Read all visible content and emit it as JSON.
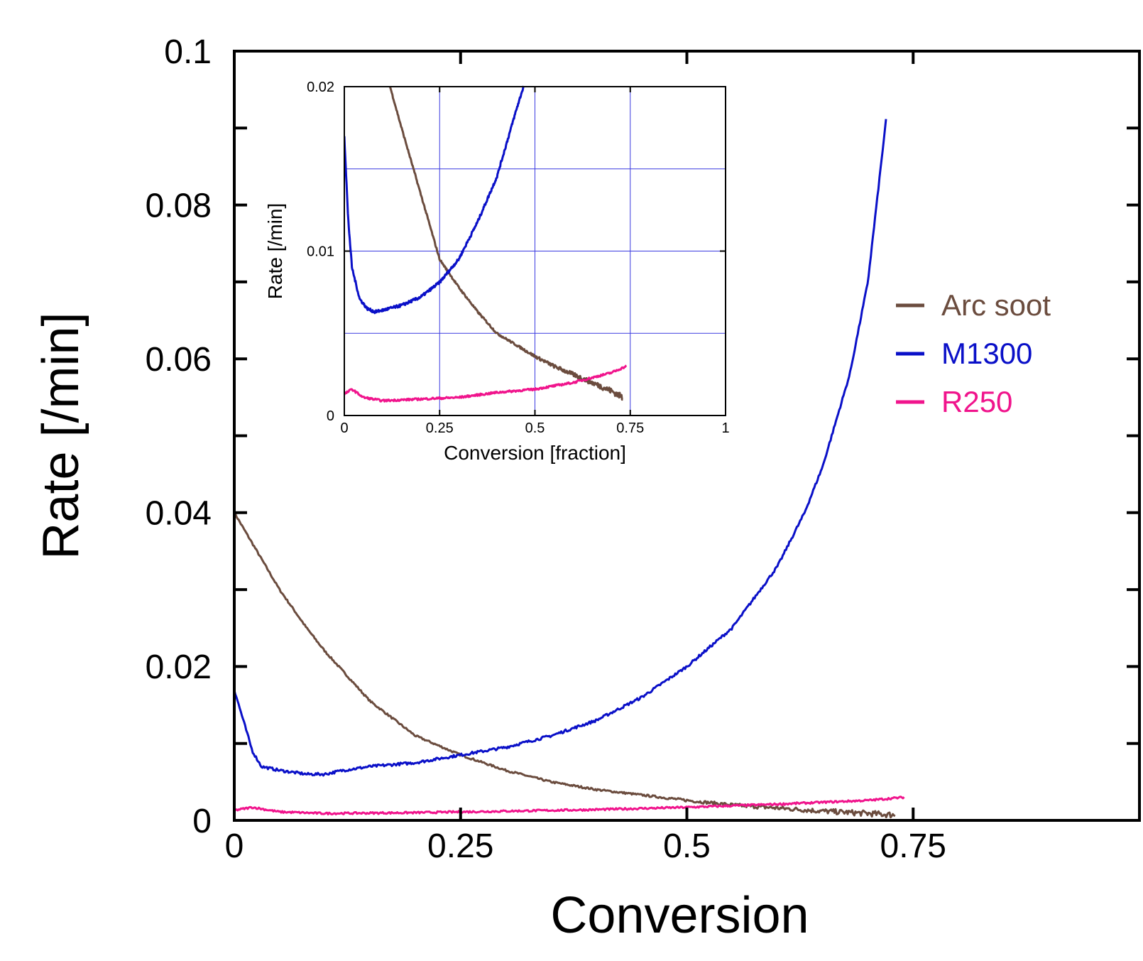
{
  "chart_data": [
    {
      "type": "line",
      "title": "",
      "xlabel": "Conversion",
      "ylabel": "Rate [/min]",
      "xlim": [
        0,
        1
      ],
      "ylim": [
        0,
        0.1
      ],
      "xticks": [
        0,
        0.25,
        0.5,
        0.75
      ],
      "xtick_labels": [
        "0",
        "0.25",
        "0.5",
        "0.75"
      ],
      "yticks": [
        0,
        0.02,
        0.04,
        0.06,
        0.08,
        0.1
      ],
      "ytick_labels": [
        "0",
        "0.02",
        "0.04",
        "0.06",
        "0.08",
        "0.1"
      ],
      "grid": false,
      "legend": "right",
      "series": [
        {
          "name": "Arc soot",
          "color": "#6b4c3e",
          "x": [
            0.0,
            0.02,
            0.05,
            0.08,
            0.1,
            0.15,
            0.2,
            0.25,
            0.3,
            0.35,
            0.4,
            0.45,
            0.5,
            0.55,
            0.6,
            0.65,
            0.7,
            0.73
          ],
          "y": [
            0.04,
            0.036,
            0.03,
            0.025,
            0.022,
            0.0155,
            0.011,
            0.0085,
            0.0065,
            0.005,
            0.004,
            0.0033,
            0.0026,
            0.002,
            0.0016,
            0.0012,
            0.0009,
            0.0007
          ]
        },
        {
          "name": "M1300",
          "color": "#0a10c8",
          "x": [
            0.0,
            0.01,
            0.02,
            0.03,
            0.05,
            0.08,
            0.1,
            0.12,
            0.15,
            0.2,
            0.25,
            0.3,
            0.35,
            0.4,
            0.45,
            0.5,
            0.55,
            0.6,
            0.63,
            0.65,
            0.68,
            0.7,
            0.72
          ],
          "y": [
            0.017,
            0.013,
            0.009,
            0.007,
            0.0065,
            0.006,
            0.006,
            0.0065,
            0.007,
            0.0075,
            0.0085,
            0.0095,
            0.011,
            0.013,
            0.016,
            0.02,
            0.025,
            0.033,
            0.04,
            0.046,
            0.058,
            0.07,
            0.091
          ]
        },
        {
          "name": "R250",
          "color": "#f0148c",
          "x": [
            0.0,
            0.02,
            0.05,
            0.1,
            0.2,
            0.3,
            0.4,
            0.5,
            0.6,
            0.7,
            0.74
          ],
          "y": [
            0.0013,
            0.0017,
            0.0011,
            0.0009,
            0.001,
            0.0012,
            0.0014,
            0.0017,
            0.0021,
            0.0026,
            0.003
          ]
        }
      ]
    },
    {
      "type": "line",
      "title": "",
      "xlabel": "Conversion [fraction]",
      "ylabel": "Rate [/min]",
      "xlim": [
        0,
        1
      ],
      "ylim": [
        0,
        0.02
      ],
      "xticks": [
        0,
        0.25,
        0.5,
        0.75,
        1
      ],
      "xtick_labels": [
        "0",
        "0.25",
        "0.5",
        "0.75",
        "1"
      ],
      "yticks": [
        0,
        0.01,
        0.02
      ],
      "ytick_labels": [
        "0",
        "0.01",
        "0.02"
      ],
      "grid": true,
      "grid_color": "#3a3ae0",
      "series": [
        {
          "name": "Arc soot",
          "color": "#6b4c3e",
          "x": [
            0.12,
            0.15,
            0.2,
            0.25,
            0.3,
            0.35,
            0.4,
            0.45,
            0.5,
            0.55,
            0.6,
            0.65,
            0.7,
            0.73
          ],
          "y": [
            0.02,
            0.0175,
            0.0135,
            0.0095,
            0.0078,
            0.0063,
            0.005,
            0.0043,
            0.0036,
            0.003,
            0.0025,
            0.002,
            0.0015,
            0.0011
          ]
        },
        {
          "name": "M1300",
          "color": "#0a10c8",
          "x": [
            0.0,
            0.01,
            0.02,
            0.04,
            0.06,
            0.08,
            0.1,
            0.15,
            0.2,
            0.25,
            0.3,
            0.35,
            0.4,
            0.45,
            0.47
          ],
          "y": [
            0.017,
            0.012,
            0.009,
            0.0071,
            0.0065,
            0.0063,
            0.0064,
            0.0067,
            0.0072,
            0.0081,
            0.0095,
            0.0118,
            0.0145,
            0.0185,
            0.02
          ]
        },
        {
          "name": "R250",
          "color": "#f0148c",
          "x": [
            0.0,
            0.02,
            0.05,
            0.1,
            0.2,
            0.3,
            0.4,
            0.5,
            0.6,
            0.7,
            0.74
          ],
          "y": [
            0.0013,
            0.0016,
            0.0011,
            0.0009,
            0.001,
            0.0011,
            0.0014,
            0.0016,
            0.002,
            0.0026,
            0.003
          ]
        }
      ]
    }
  ]
}
